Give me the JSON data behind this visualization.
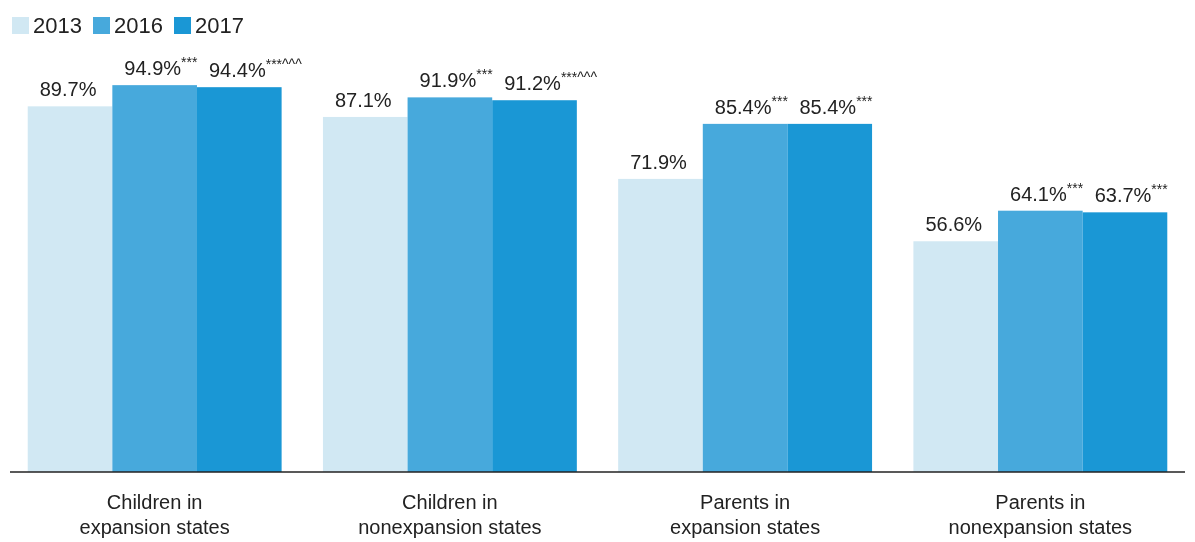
{
  "chart_data": {
    "type": "bar",
    "categories": [
      "Children in\nexpansion states",
      "Children in\nnonexpansion states",
      "Parents in\nexpansion states",
      "Parents in\nnonexpansion states"
    ],
    "series": [
      {
        "name": "2013",
        "color": "#d1e8f3",
        "values": [
          89.7,
          87.1,
          71.9,
          56.6
        ],
        "value_labels": [
          "89.7%",
          "87.1%",
          "71.9%",
          "56.6%"
        ]
      },
      {
        "name": "2016",
        "color": "#47a9dc",
        "values": [
          94.9,
          91.9,
          85.4,
          64.1
        ],
        "value_labels": [
          "94.9%$^{***}$",
          "91.9%$^{***}$",
          "85.4%$^{***}$",
          "64.1%$^{***}$"
        ]
      },
      {
        "name": "2017",
        "color": "#1a97d5",
        "values": [
          94.4,
          91.2,
          85.4,
          63.7
        ],
        "value_labels": [
          "94.4%$^{***^^^}$",
          "91.2%$^{***^^^}$",
          "85.4%$^{***}$",
          "63.7%$^{***}$"
        ]
      }
    ],
    "legend": "top left",
    "grid": false
  }
}
